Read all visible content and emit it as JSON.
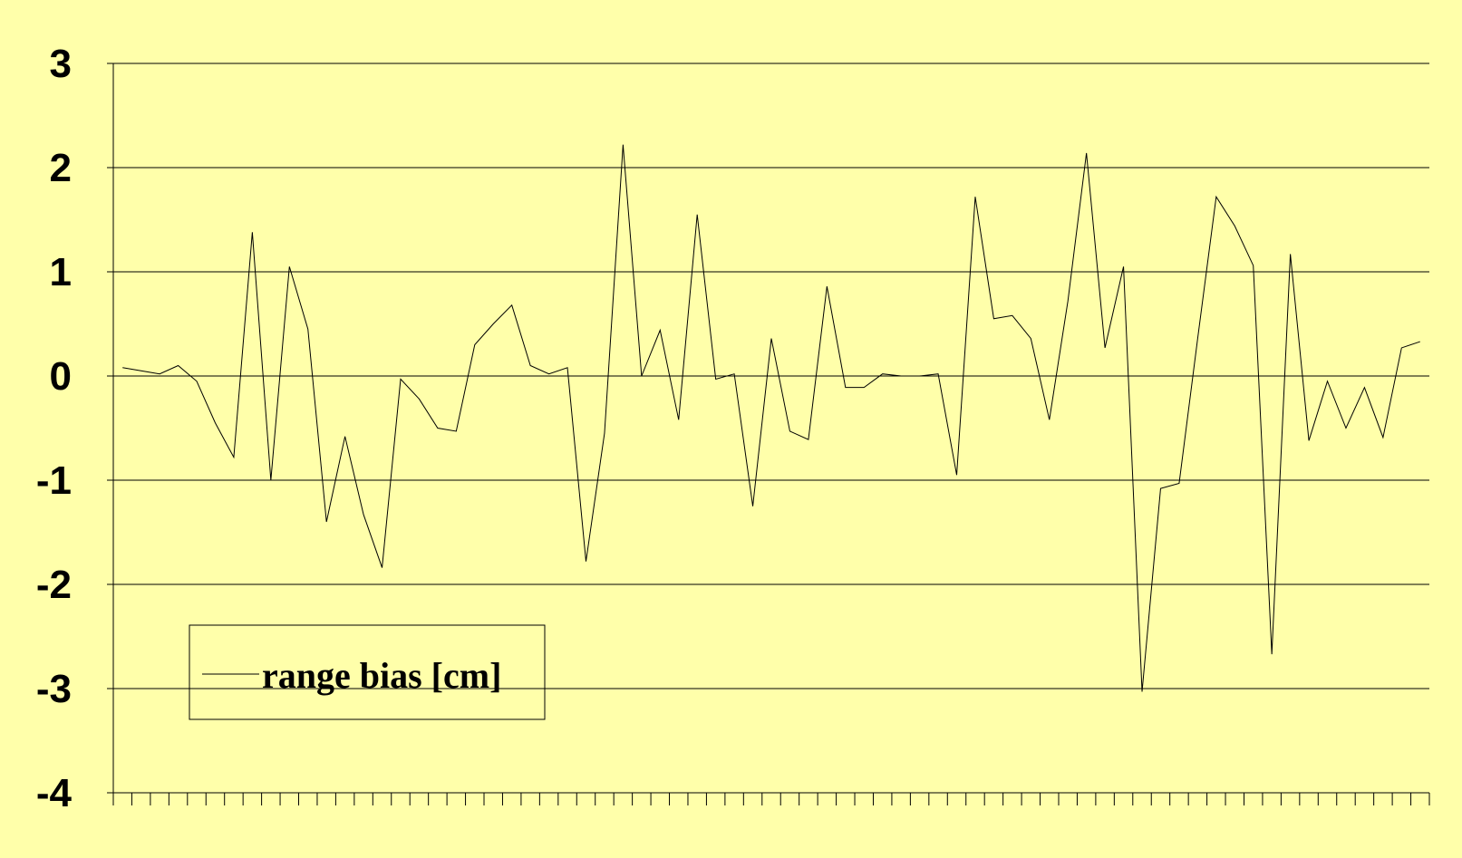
{
  "colors": {
    "background": "#ffffaa",
    "gridline": "#000000",
    "series_line": "#000000"
  },
  "chart_data": {
    "type": "line",
    "title": "",
    "xlabel": "",
    "ylabel": "",
    "ylim": [
      -4,
      3
    ],
    "yticks": [
      "3",
      "2",
      "1",
      "0",
      "-1",
      "-2",
      "-3",
      "-4"
    ],
    "ytick_values": [
      3,
      2,
      1,
      0,
      -1,
      -2,
      -3,
      -4
    ],
    "grid": "horizontal",
    "legend_position": "bottom-left",
    "series": [
      {
        "name": "range bias [cm]",
        "values": [
          0.08,
          0.05,
          0.02,
          0.1,
          -0.05,
          -0.45,
          -0.78,
          1.38,
          -1.0,
          1.05,
          0.45,
          -1.4,
          -0.58,
          -1.33,
          -1.84,
          -0.03,
          -0.22,
          -0.5,
          -0.53,
          0.3,
          0.5,
          0.68,
          0.1,
          0.02,
          0.08,
          -1.78,
          -0.55,
          2.22,
          0.0,
          0.44,
          -0.42,
          1.55,
          -0.03,
          0.02,
          -1.25,
          0.36,
          -0.53,
          -0.61,
          0.86,
          -0.11,
          -0.11,
          0.02,
          0.0,
          0.0,
          0.02,
          -0.95,
          1.72,
          0.55,
          0.58,
          0.36,
          -0.42,
          0.72,
          2.14,
          0.27,
          1.05,
          -3.03,
          -1.08,
          -1.03,
          0.36,
          1.72,
          1.44,
          1.06,
          -2.67,
          1.17,
          -0.62,
          -0.05,
          -0.5,
          -0.11,
          -0.59,
          0.27,
          0.33
        ]
      }
    ]
  }
}
